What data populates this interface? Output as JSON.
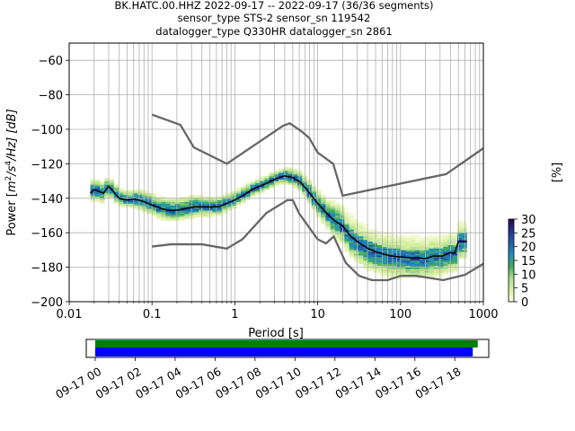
{
  "title_lines": [
    "BK.HATC.00.HHZ   2022-09-17 -- 2022-09-17  (36/36 segments)",
    "sensor_type STS-2 sensor_sn 119542",
    "datalogger_type Q330HR datalogger_sn 2861"
  ],
  "chart_data": {
    "type": "heatmap",
    "xlabel": "Period [s]",
    "ylabel": "Power [m²/s⁴/Hz] [dB]",
    "ylabel_parts": {
      "pre": "Power [",
      "m": "m",
      "sup1": "2",
      "mid": "/s",
      "sup2": "4",
      "post": "/Hz] [dB]"
    },
    "xscale": "log",
    "xlim": [
      0.01,
      1000
    ],
    "ylim": [
      -200,
      -50
    ],
    "x_ticks": [
      {
        "v": 0.01,
        "label": "0.01"
      },
      {
        "v": 0.1,
        "label": "0.1"
      },
      {
        "v": 1,
        "label": "1"
      },
      {
        "v": 10,
        "label": "10"
      },
      {
        "v": 100,
        "label": "100"
      },
      {
        "v": 1000,
        "label": "1000"
      }
    ],
    "y_ticks": [
      {
        "v": -60,
        "label": "−60"
      },
      {
        "v": -80,
        "label": "−80"
      },
      {
        "v": -100,
        "label": "−100"
      },
      {
        "v": -120,
        "label": "−120"
      },
      {
        "v": -140,
        "label": "−140"
      },
      {
        "v": -160,
        "label": "−160"
      },
      {
        "v": -180,
        "label": "−180"
      },
      {
        "v": -200,
        "label": "−200"
      }
    ],
    "grid": true,
    "colorbar": {
      "label": "[%]",
      "min": 0,
      "max": 30,
      "ticks": [
        {
          "v": 0,
          "label": "0"
        },
        {
          "v": 5,
          "label": "5"
        },
        {
          "v": 10,
          "label": "10"
        },
        {
          "v": 15,
          "label": "15"
        },
        {
          "v": 20,
          "label": "20"
        },
        {
          "v": 25,
          "label": "25"
        },
        {
          "v": 30,
          "label": "30"
        }
      ],
      "colors": [
        "#ffffe5",
        "#d9f0a3",
        "#addd8e",
        "#41ab5d",
        "#1d91c0",
        "#225ea8",
        "#253494",
        "#2d004b"
      ]
    },
    "nhnm": [
      [
        0.1,
        -168
      ],
      [
        0.17,
        -166.7
      ],
      [
        0.4,
        -166.7
      ],
      [
        0.8,
        -169.2
      ],
      [
        1.24,
        -163.7
      ],
      [
        2.4,
        -148.6
      ],
      [
        4.3,
        -141.1
      ],
      [
        5.0,
        -141.1
      ],
      [
        6.0,
        -149
      ],
      [
        10,
        -163.8
      ],
      [
        12.6,
        -166.2
      ],
      [
        15.6,
        -162.1
      ],
      [
        21.9,
        -177.5
      ],
      [
        31.6,
        -185
      ],
      [
        45,
        -187.5
      ],
      [
        70,
        -187.5
      ],
      [
        101,
        -185
      ],
      [
        154,
        -185
      ],
      [
        328,
        -187.5
      ],
      [
        600,
        -184.4
      ],
      [
        1000,
        -178
      ]
    ],
    "nlnm": [
      [
        0.1,
        -91.5
      ],
      [
        0.22,
        -97.4
      ],
      [
        0.32,
        -110.5
      ],
      [
        0.8,
        -120
      ],
      [
        3.8,
        -98
      ],
      [
        4.6,
        -96.5
      ],
      [
        6.3,
        -101
      ],
      [
        7.9,
        -105
      ],
      [
        10,
        -113.5
      ],
      [
        15.4,
        -120
      ],
      [
        20,
        -138.5
      ],
      [
        354.8,
        -126
      ],
      [
        1000,
        -111
      ]
    ],
    "median": [
      [
        0.018,
        -137
      ],
      [
        0.02,
        -135
      ],
      [
        0.023,
        -136
      ],
      [
        0.026,
        -137
      ],
      [
        0.03,
        -133
      ],
      [
        0.034,
        -136
      ],
      [
        0.04,
        -140
      ],
      [
        0.05,
        -141
      ],
      [
        0.063,
        -140.5
      ],
      [
        0.08,
        -142
      ],
      [
        0.1,
        -144
      ],
      [
        0.13,
        -146
      ],
      [
        0.16,
        -147
      ],
      [
        0.2,
        -147
      ],
      [
        0.25,
        -146
      ],
      [
        0.32,
        -145
      ],
      [
        0.4,
        -145
      ],
      [
        0.5,
        -145
      ],
      [
        0.63,
        -145
      ],
      [
        0.8,
        -143
      ],
      [
        1.0,
        -141
      ],
      [
        1.3,
        -138
      ],
      [
        1.6,
        -135
      ],
      [
        2.0,
        -133
      ],
      [
        2.5,
        -131
      ],
      [
        3.2,
        -128.5
      ],
      [
        4.0,
        -127
      ],
      [
        5.0,
        -128
      ],
      [
        6.3,
        -131
      ],
      [
        8.0,
        -137
      ],
      [
        10,
        -143
      ],
      [
        13,
        -149
      ],
      [
        16,
        -153
      ],
      [
        20,
        -156
      ],
      [
        25,
        -162
      ],
      [
        32,
        -166
      ],
      [
        40,
        -169
      ],
      [
        50,
        -171
      ],
      [
        63,
        -172.5
      ],
      [
        80,
        -173.5
      ],
      [
        100,
        -174
      ],
      [
        130,
        -174.5
      ],
      [
        160,
        -174.5
      ],
      [
        200,
        -175
      ],
      [
        250,
        -173.5
      ],
      [
        320,
        -173.5
      ],
      [
        400,
        -171.5
      ],
      [
        450,
        -172
      ],
      [
        500,
        -165
      ],
      [
        560,
        -165
      ],
      [
        630,
        -165
      ]
    ],
    "band_width_db": [
      [
        0.018,
        16
      ],
      [
        0.05,
        12
      ],
      [
        0.1,
        16
      ],
      [
        0.3,
        16
      ],
      [
        1,
        12
      ],
      [
        3,
        10
      ],
      [
        6,
        14
      ],
      [
        12,
        20
      ],
      [
        25,
        30
      ],
      [
        60,
        30
      ],
      [
        200,
        30
      ],
      [
        650,
        26
      ]
    ]
  },
  "timeline": {
    "tick_labels": [
      "09-17 00",
      "09-17 02",
      "09-17 04",
      "09-17 06",
      "09-17 08",
      "09-17 10",
      "09-17 12",
      "09-17 14",
      "09-17 16",
      "09-17 18"
    ],
    "data_start_hour": 0,
    "data_end_hour": 18.9,
    "axis_start_hour": -0.45,
    "axis_end_hour": 19.7,
    "colors": {
      "data": "#008000",
      "used": "#0000ff"
    }
  }
}
